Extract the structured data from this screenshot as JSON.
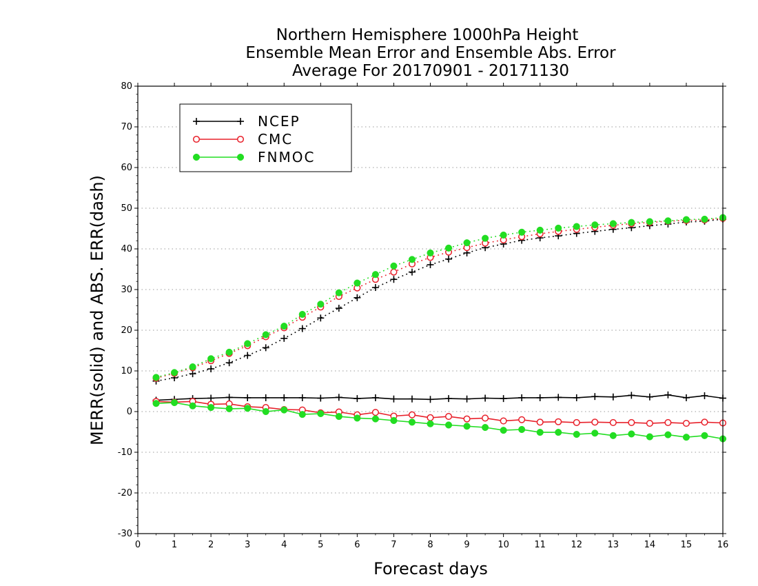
{
  "chart_data": {
    "type": "line",
    "title_lines": [
      "Northern Hemisphere 1000hPa Height",
      "Ensemble Mean Error and Ensemble Abs. Error",
      "Average For 20170901 - 20171130"
    ],
    "xlabel": "Forecast days",
    "ylabel": "MERR(solid) and ABS. ERR(dash)",
    "xlim": [
      0,
      16
    ],
    "ylim": [
      -30,
      80
    ],
    "xticks": [
      "0",
      "1",
      "2",
      "3",
      "4",
      "5",
      "6",
      "7",
      "8",
      "9",
      "10",
      "11",
      "12",
      "13",
      "14",
      "15",
      "16"
    ],
    "yticks": [
      "-30",
      "-20",
      "-10",
      "0",
      "10",
      "20",
      "30",
      "40",
      "50",
      "60",
      "70",
      "80"
    ],
    "grid": "horizontal dotted",
    "legend_position": "top-left",
    "x": [
      0.5,
      1,
      1.5,
      2,
      2.5,
      3,
      3.5,
      4,
      4.5,
      5,
      5.5,
      6,
      6.5,
      7,
      7.5,
      8,
      8.5,
      9,
      9.5,
      10,
      10.5,
      11,
      11.5,
      12,
      12.5,
      13,
      13.5,
      14,
      14.5,
      15,
      15.5,
      16
    ],
    "series": [
      {
        "name": "NCEP",
        "color": "#000000",
        "marker": "plus",
        "merr": [
          2.8,
          3.0,
          3.2,
          3.3,
          3.5,
          3.4,
          3.4,
          3.4,
          3.4,
          3.3,
          3.5,
          3.2,
          3.4,
          3.1,
          3.1,
          3.0,
          3.2,
          3.1,
          3.3,
          3.2,
          3.4,
          3.4,
          3.5,
          3.4,
          3.7,
          3.6,
          4.0,
          3.6,
          4.1,
          3.4,
          3.9,
          3.3
        ],
        "abs_err": [
          7.5,
          8.3,
          9.3,
          10.5,
          12.0,
          13.8,
          15.7,
          18.0,
          20.4,
          23.0,
          25.4,
          28.0,
          30.5,
          32.5,
          34.3,
          36.1,
          37.5,
          39.0,
          40.3,
          41.2,
          42.1,
          42.7,
          43.2,
          43.8,
          44.3,
          44.8,
          45.2,
          45.7,
          46.1,
          46.6,
          46.8,
          47.3
        ]
      },
      {
        "name": "CMC",
        "color": "#e8202a",
        "marker": "open-circle",
        "merr": [
          2.5,
          2.3,
          2.5,
          1.8,
          1.9,
          1.2,
          1.0,
          0.5,
          0.4,
          -0.3,
          -0.1,
          -0.8,
          -0.2,
          -1.1,
          -0.8,
          -1.5,
          -1.2,
          -1.8,
          -1.6,
          -2.3,
          -2.0,
          -2.6,
          -2.5,
          -2.7,
          -2.6,
          -2.7,
          -2.7,
          -2.9,
          -2.7,
          -2.9,
          -2.6,
          -2.8
        ],
        "abs_err": [
          8.2,
          9.4,
          10.8,
          12.5,
          14.3,
          16.2,
          18.4,
          20.6,
          23.2,
          25.7,
          28.3,
          30.4,
          32.5,
          34.3,
          36.3,
          37.9,
          39.2,
          40.3,
          41.4,
          42.2,
          43.0,
          43.7,
          44.3,
          44.8,
          45.3,
          45.8,
          46.2,
          46.5,
          46.8,
          47.0,
          47.1,
          47.5
        ]
      },
      {
        "name": "FNMOC",
        "color": "#22dd22",
        "marker": "filled-circle",
        "merr": [
          2.0,
          2.2,
          1.4,
          1.0,
          0.7,
          0.8,
          0.0,
          0.4,
          -0.7,
          -0.5,
          -1.2,
          -1.6,
          -1.8,
          -2.2,
          -2.6,
          -3.0,
          -3.3,
          -3.6,
          -3.9,
          -4.6,
          -4.4,
          -5.1,
          -5.1,
          -5.6,
          -5.3,
          -5.9,
          -5.5,
          -6.2,
          -5.7,
          -6.3,
          -5.9,
          -6.7
        ],
        "abs_err": [
          8.4,
          9.6,
          11.0,
          13.0,
          14.6,
          16.7,
          18.9,
          21.0,
          23.9,
          26.4,
          29.2,
          31.6,
          33.7,
          35.8,
          37.4,
          39.0,
          40.2,
          41.5,
          42.6,
          43.4,
          44.1,
          44.6,
          45.1,
          45.5,
          45.9,
          46.2,
          46.5,
          46.7,
          46.9,
          47.2,
          47.3,
          47.7
        ]
      }
    ]
  }
}
